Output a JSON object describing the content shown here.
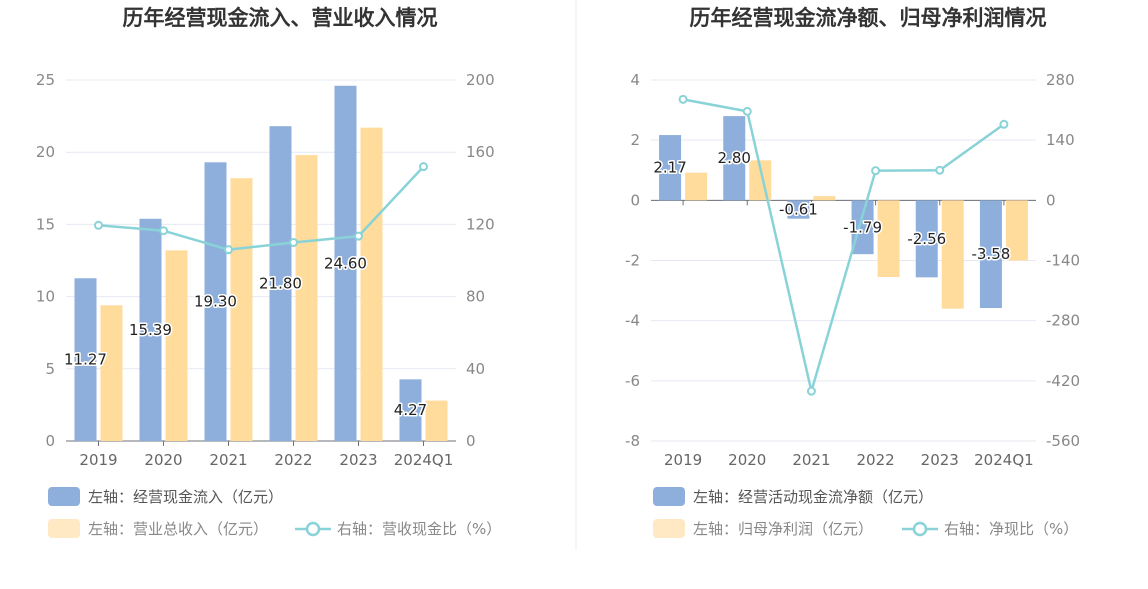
{
  "charts": [
    {
      "title": "历年经营现金流入、营业收入情况",
      "categories": [
        "2019",
        "2020",
        "2021",
        "2022",
        "2023",
        "2024Q1"
      ],
      "left_axis": {
        "ticks": [
          "0",
          "5",
          "10",
          "15",
          "20",
          "25"
        ],
        "min": 0,
        "max": 25
      },
      "right_axis": {
        "ticks": [
          "0",
          "40",
          "80",
          "120",
          "160",
          "200"
        ],
        "min": 0,
        "max": 200
      },
      "series": [
        {
          "name": "左轴：经营现金流入（亿元）",
          "type": "bar",
          "axis": "left",
          "color": "#8eaedc",
          "values": [
            11.27,
            15.39,
            19.3,
            21.8,
            24.6,
            4.27
          ],
          "labels": [
            "11.27",
            "15.39",
            "19.30",
            "21.80",
            "24.60",
            "4.27"
          ]
        },
        {
          "name": "左轴：营业总收入（亿元）",
          "type": "bar",
          "axis": "left",
          "color": "#ffdb9c",
          "values": [
            9.4,
            13.2,
            18.2,
            19.8,
            21.7,
            2.8
          ]
        },
        {
          "name": "右轴：营收现金比（%）",
          "type": "line",
          "axis": "right",
          "color": "#89d3d8",
          "values": [
            119.5,
            116.5,
            106,
            110,
            113.5,
            152
          ]
        }
      ]
    },
    {
      "title": "历年经营现金流净额、归母净利润情况",
      "categories": [
        "2019",
        "2020",
        "2021",
        "2022",
        "2023",
        "2024Q1"
      ],
      "left_axis": {
        "ticks": [
          "-8",
          "-6",
          "-4",
          "-2",
          "0",
          "2",
          "4"
        ],
        "min": -8,
        "max": 4
      },
      "right_axis": {
        "ticks": [
          "-560",
          "-420",
          "-280",
          "-140",
          "0",
          "140",
          "280"
        ],
        "min": -560,
        "max": 280
      },
      "series": [
        {
          "name": "左轴：经营活动现金流净额（亿元）",
          "type": "bar",
          "axis": "left",
          "color": "#8eaedc",
          "values": [
            2.17,
            2.8,
            -0.61,
            -1.79,
            -2.56,
            -3.58
          ],
          "labels": [
            "2.17",
            "2.80",
            "-0.61",
            "-1.79",
            "-2.56",
            "-3.58"
          ]
        },
        {
          "name": "左轴：归母净利润（亿元）",
          "type": "bar",
          "axis": "left",
          "color": "#ffdb9c",
          "values": [
            0.92,
            1.33,
            0.14,
            -2.55,
            -3.6,
            -2.0
          ]
        },
        {
          "name": "右轴：净现比（%）",
          "type": "line",
          "axis": "right",
          "color": "#89d3d8",
          "values": [
            235,
            207,
            -444,
            69,
            70,
            177
          ]
        }
      ]
    }
  ]
}
